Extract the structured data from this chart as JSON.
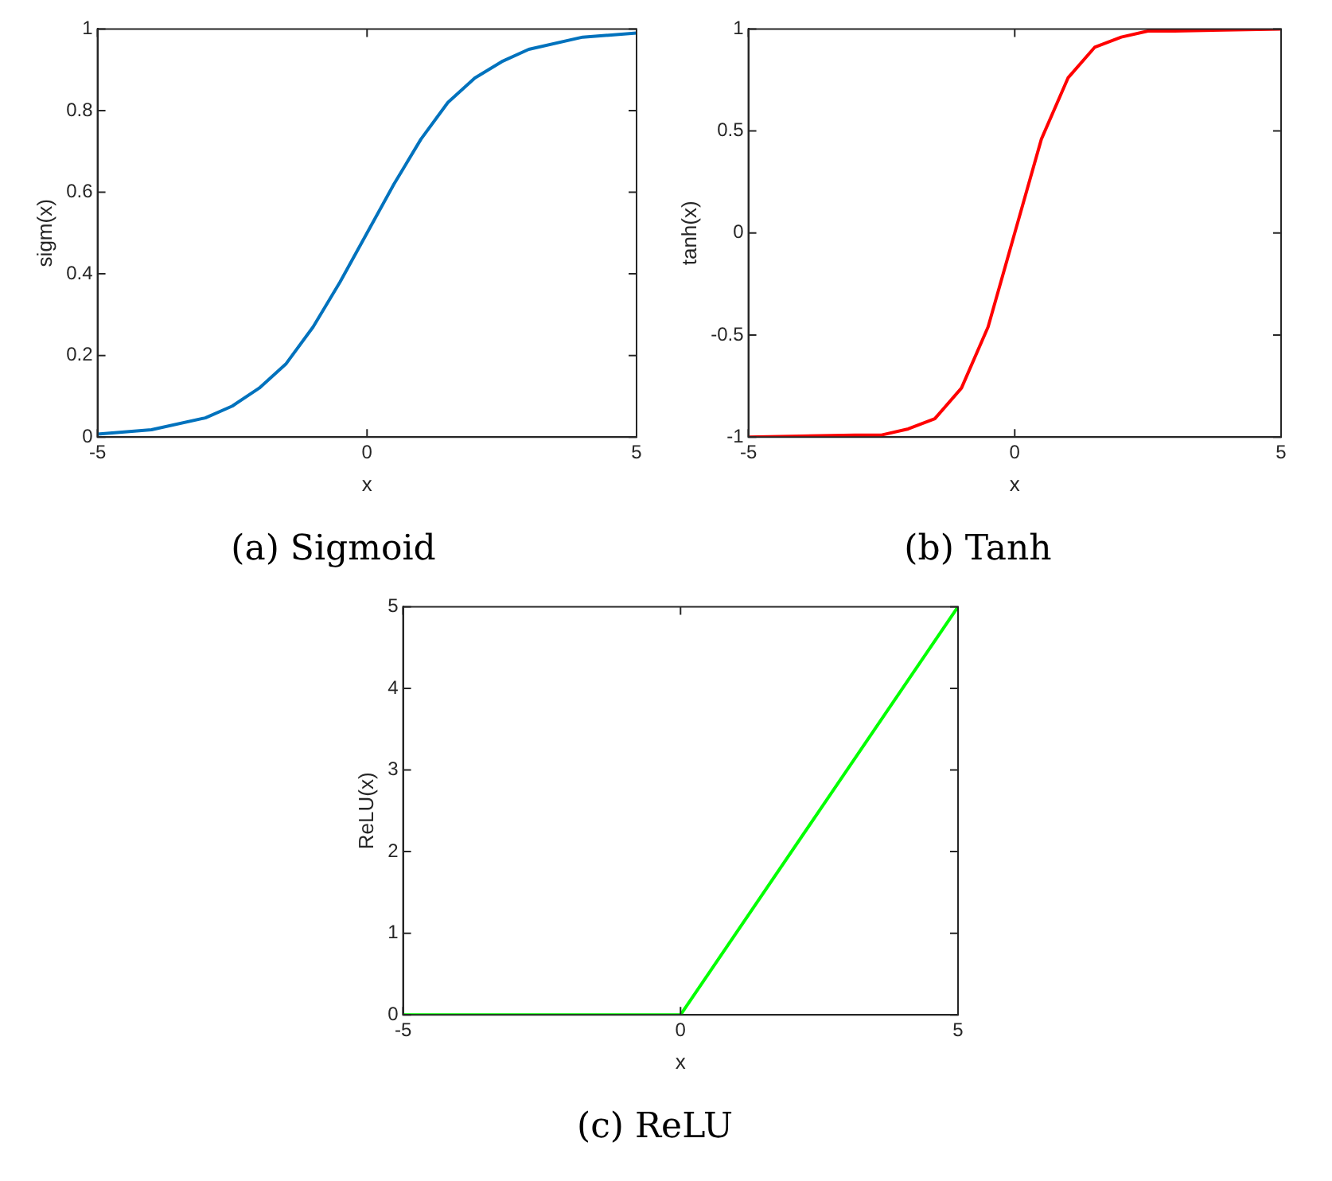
{
  "chart_data": [
    {
      "type": "line",
      "title": "(a) Sigmoid",
      "xlabel": "x",
      "ylabel": "sigm(x)",
      "marker": "none",
      "x": [
        -5,
        -4,
        -3,
        -2.5,
        -2,
        -1.5,
        -1,
        -0.5,
        0,
        0.5,
        1,
        1.5,
        2,
        2.5,
        3,
        4,
        5
      ],
      "series": [
        {
          "color": "#0072bd",
          "values": [
            0.007,
            0.018,
            0.047,
            0.076,
            0.12,
            0.18,
            0.27,
            0.38,
            0.5,
            0.62,
            0.73,
            0.82,
            0.88,
            0.92,
            0.95,
            0.98,
            0.99
          ]
        }
      ],
      "xlim": [
        -5,
        5
      ],
      "xticks": [
        -5,
        0,
        5
      ],
      "ylim": [
        0,
        1
      ],
      "yticks": [
        0,
        0.2,
        0.4,
        0.6,
        0.8,
        1
      ]
    },
    {
      "type": "line",
      "title": "(b) Tanh",
      "xlabel": "x",
      "ylabel": "tanh(x)",
      "marker": "none",
      "x": [
        -5,
        -3,
        -2.5,
        -2,
        -1.5,
        -1,
        -0.5,
        0,
        0.5,
        1,
        1.5,
        2,
        2.5,
        3,
        5
      ],
      "series": [
        {
          "color": "#ff0000",
          "values": [
            -1,
            -0.99,
            -0.99,
            -0.96,
            -0.91,
            -0.76,
            -0.46,
            0,
            0.46,
            0.76,
            0.91,
            0.96,
            0.99,
            0.99,
            1
          ]
        }
      ],
      "xlim": [
        -5,
        5
      ],
      "xticks": [
        -5,
        0,
        5
      ],
      "ylim": [
        -1,
        1
      ],
      "yticks": [
        -1,
        -0.5,
        0,
        0.5,
        1
      ]
    },
    {
      "type": "line",
      "title": "(c) ReLU",
      "xlabel": "x",
      "ylabel": "ReLU(x)",
      "marker": "none",
      "x": [
        -5,
        0,
        5
      ],
      "series": [
        {
          "color": "#00ff00",
          "values": [
            0,
            0,
            5
          ]
        }
      ],
      "xlim": [
        -5,
        5
      ],
      "xticks": [
        -5,
        0,
        5
      ],
      "ylim": [
        0,
        5
      ],
      "yticks": [
        0,
        1,
        2,
        3,
        4,
        5
      ]
    }
  ]
}
